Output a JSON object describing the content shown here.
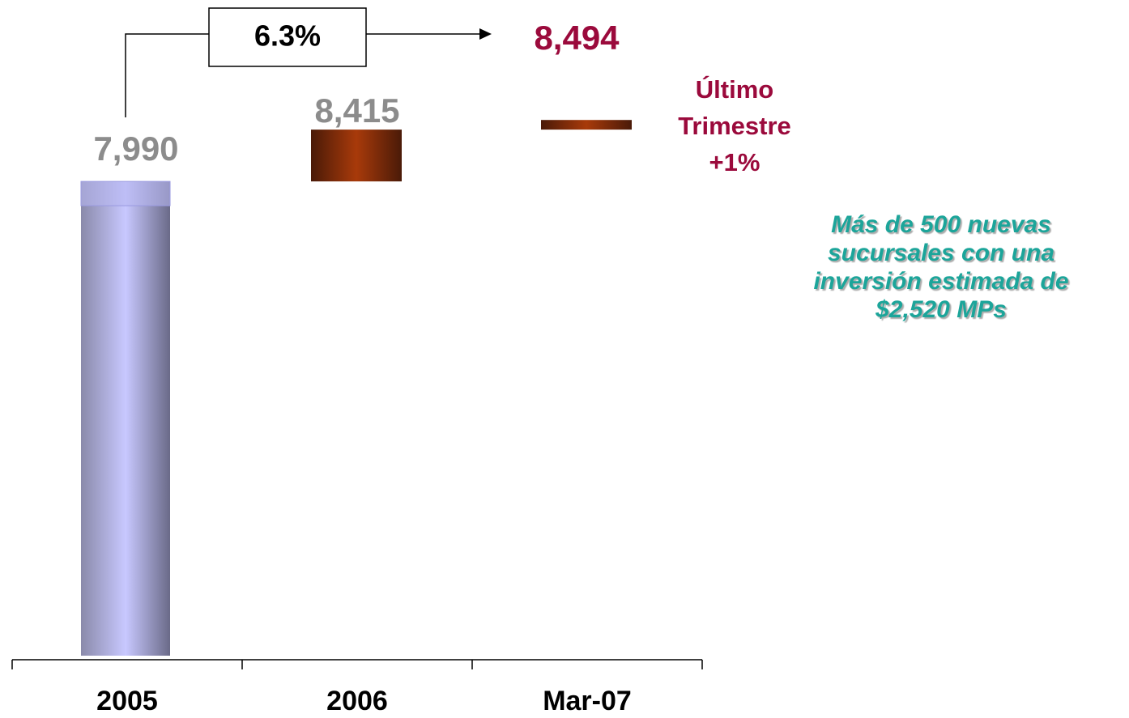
{
  "chart_data": {
    "type": "waterfall",
    "categories": [
      "2005",
      "2006",
      "Mar-07"
    ],
    "values": [
      7990,
      8415,
      8494
    ],
    "value_labels": [
      "7,990",
      "8,415",
      "8,494"
    ],
    "label_colors": [
      "#8c8c8c",
      "#8c8c8c",
      "#9b0a3c"
    ],
    "ylim": [
      4100,
      9000
    ],
    "growth_label": "6.3%",
    "quarter_note": [
      "Último",
      "Trimestre",
      "+1%"
    ],
    "side_note": [
      "Más de 500 nuevas",
      "sucursales con una",
      "inversión estimada de",
      "$2,520 MPs"
    ]
  }
}
